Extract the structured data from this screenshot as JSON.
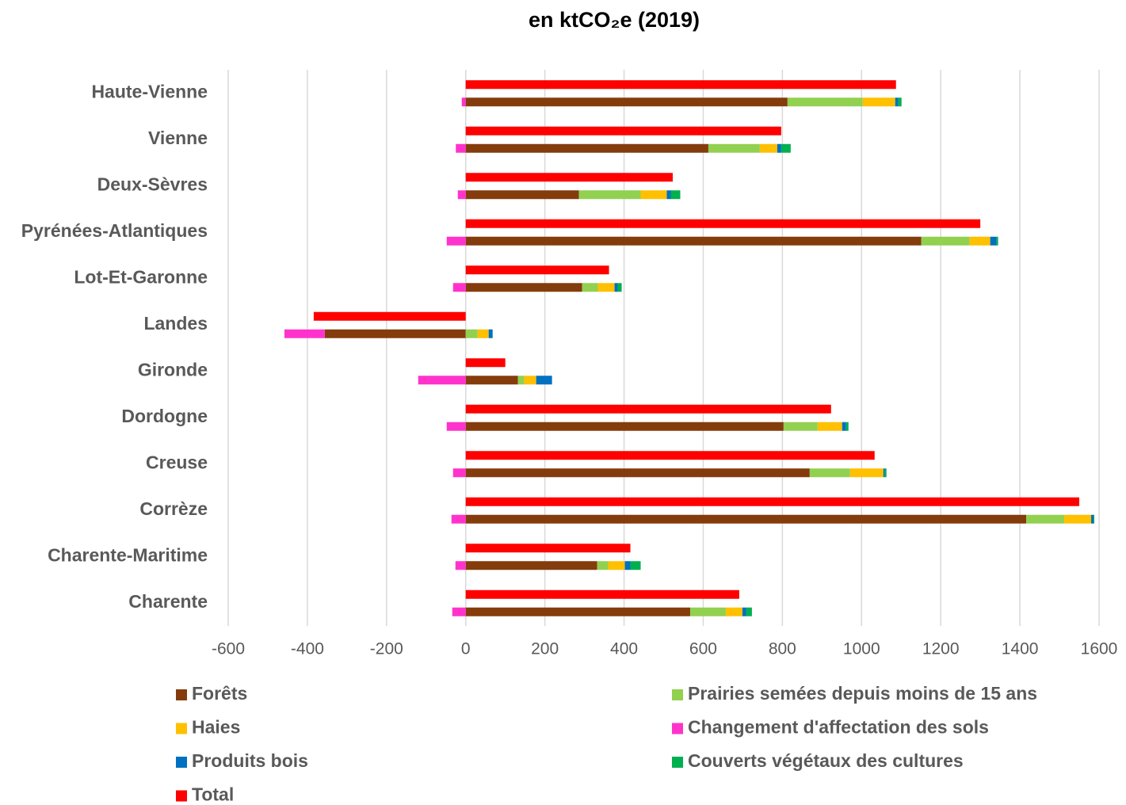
{
  "chart_data": {
    "type": "bar",
    "title": "en ktCO₂e (2019)",
    "categories": [
      "Haute-Vienne",
      "Vienne",
      "Deux-Sèvres",
      "Pyrénées-Atlantiques",
      "Lot-Et-Garonne",
      "Landes",
      "Gironde",
      "Dordogne",
      "Creuse",
      "Corrèze",
      "Charente-Maritime",
      "Charente"
    ],
    "series": [
      {
        "name": "Forêts",
        "color": "#843c0c",
        "values": [
          813,
          613,
          286,
          1151,
          294,
          -356,
          132,
          803,
          869,
          1416,
          332,
          567
        ]
      },
      {
        "name": "Prairies semées depuis moins de 15 ans",
        "color": "#92d050",
        "values": [
          190,
          130,
          156,
          122,
          40,
          30,
          16,
          86,
          102,
          96,
          28,
          90
        ]
      },
      {
        "name": "Haies",
        "color": "#ffc000",
        "values": [
          82,
          44,
          66,
          52,
          42,
          28,
          30,
          62,
          84,
          68,
          42,
          42
        ]
      },
      {
        "name": "Changement d'affectation des sols",
        "color": "#ff33cc",
        "values": [
          -10,
          -25,
          -20,
          -48,
          -32,
          -102,
          -120,
          -48,
          -32,
          -36,
          -26,
          -34
        ]
      },
      {
        "name": "Produits bois",
        "color": "#0070c0",
        "values": [
          8,
          10,
          10,
          16,
          8,
          10,
          40,
          10,
          4,
          6,
          14,
          10
        ]
      },
      {
        "name": "Couverts végétaux des cultures",
        "color": "#00b050",
        "values": [
          8,
          24,
          24,
          4,
          10,
          0,
          0,
          6,
          4,
          2,
          26,
          14
        ]
      }
    ],
    "total": {
      "name": "Total",
      "color": "#ff0000",
      "values": [
        1087,
        797,
        523,
        1300,
        362,
        -384,
        100,
        923,
        1033,
        1550,
        416,
        691
      ]
    },
    "xlim": [
      -600,
      1600
    ],
    "xticks": [
      -600,
      -400,
      -200,
      0,
      200,
      400,
      600,
      800,
      1000,
      1200,
      1400,
      1600
    ],
    "grid": true
  }
}
